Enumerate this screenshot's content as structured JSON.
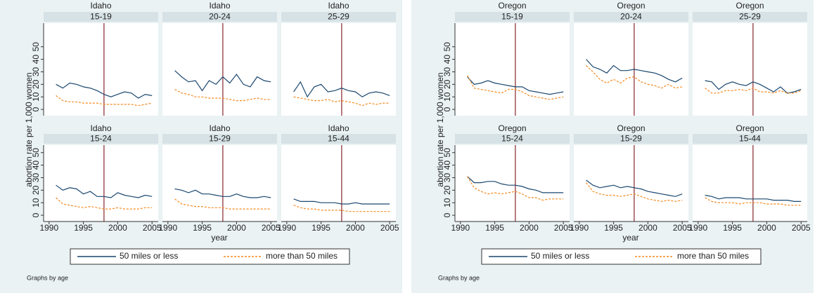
{
  "chart_data": [
    {
      "type": "line",
      "ylabel": "abortion rate per 1,000 women",
      "xlabel": "year",
      "note": "Graphs by age",
      "x": [
        1991,
        1992,
        1993,
        1994,
        1995,
        1996,
        1997,
        1998,
        1999,
        2000,
        2001,
        2002,
        2003,
        2004,
        2005
      ],
      "xlim": [
        1989.2,
        2005.9
      ],
      "ylim": [
        -5,
        56
      ],
      "xticks": [
        1990,
        1995,
        2000,
        2005
      ],
      "yticks": [
        0,
        10,
        20,
        30,
        40,
        50
      ],
      "reference_line": 1998,
      "reference_color": "#90353b",
      "series": [
        {
          "name": "50 miles or less",
          "color": "#1a476f",
          "dash": false
        },
        {
          "name": "more than 50 miles",
          "color": "#f5891f",
          "dash": true
        }
      ],
      "panels": [
        {
          "title": "Idaho",
          "subtitle": "15-19",
          "series": [
            {
              "values": [
                20,
                17,
                21,
                20,
                18,
                17,
                15,
                12,
                10,
                12,
                14,
                13,
                9,
                12,
                11
              ]
            },
            {
              "values": [
                11,
                7,
                6,
                6,
                5,
                5,
                5,
                4,
                4,
                4,
                4,
                4,
                3,
                4,
                5
              ]
            }
          ]
        },
        {
          "title": "Idaho",
          "subtitle": "20-24",
          "series": [
            {
              "values": [
                31,
                26,
                22,
                23,
                15,
                23,
                20,
                26,
                21,
                28,
                20,
                18,
                26,
                23,
                22
              ]
            },
            {
              "values": [
                16,
                13,
                12,
                10,
                10,
                9,
                9,
                9,
                8,
                7,
                7,
                8,
                9,
                8,
                8
              ]
            }
          ]
        },
        {
          "title": "Idaho",
          "subtitle": "25-29",
          "series": [
            {
              "values": [
                14,
                22,
                10,
                18,
                20,
                14,
                15,
                17,
                15,
                14,
                10,
                13,
                14,
                13,
                11
              ]
            },
            {
              "values": [
                10,
                9,
                8,
                7,
                7,
                8,
                6,
                7,
                6,
                5,
                3,
                5,
                4,
                5,
                5
              ]
            }
          ]
        },
        {
          "title": "Idaho",
          "subtitle": "15-24",
          "series": [
            {
              "values": [
                24,
                20,
                22,
                21,
                17,
                19,
                15,
                15,
                14,
                18,
                16,
                15,
                14,
                16,
                15
              ]
            },
            {
              "values": [
                14,
                9,
                8,
                7,
                6,
                7,
                6,
                5,
                5,
                6,
                5,
                5,
                5,
                6,
                6
              ]
            }
          ]
        },
        {
          "title": "Idaho",
          "subtitle": "15-29",
          "series": [
            {
              "values": [
                21,
                20,
                18,
                20,
                17,
                17,
                16,
                15,
                15,
                17,
                15,
                14,
                14,
                15,
                14
              ]
            },
            {
              "values": [
                13,
                9,
                8,
                7,
                7,
                6,
                6,
                6,
                5,
                5,
                5,
                5,
                5,
                5,
                5
              ]
            }
          ]
        },
        {
          "title": "Idaho",
          "subtitle": "15-44",
          "series": [
            {
              "values": [
                13,
                11,
                11,
                11,
                10,
                10,
                10,
                9,
                9,
                10,
                9,
                9,
                9,
                9,
                9
              ]
            },
            {
              "values": [
                8,
                6,
                5,
                5,
                4,
                4,
                4,
                4,
                3,
                3,
                3,
                3,
                3,
                3,
                3
              ]
            }
          ]
        }
      ]
    },
    {
      "type": "line",
      "ylabel": "abortion rate per 1,000 women",
      "xlabel": "year",
      "note": "Graphs by age",
      "x": [
        1991,
        1992,
        1993,
        1994,
        1995,
        1996,
        1997,
        1998,
        1999,
        2000,
        2001,
        2002,
        2003,
        2004,
        2005
      ],
      "xlim": [
        1989.2,
        2005.9
      ],
      "ylim": [
        -5,
        56
      ],
      "xticks": [
        1990,
        1995,
        2000,
        2005
      ],
      "yticks": [
        0,
        10,
        20,
        30,
        40,
        50
      ],
      "reference_line": 1998,
      "reference_color": "#90353b",
      "series": [
        {
          "name": "50 miles or less",
          "color": "#1a476f",
          "dash": false
        },
        {
          "name": "more than 50 miles",
          "color": "#f5891f",
          "dash": true
        }
      ],
      "panels": [
        {
          "title": "Oregon",
          "subtitle": "15-19",
          "series": [
            {
              "values": [
                26,
                20,
                21,
                23,
                21,
                20,
                19,
                18,
                18,
                15,
                14,
                13,
                12,
                13,
                14
              ]
            },
            {
              "values": [
                27,
                17,
                16,
                15,
                14,
                13,
                16,
                16,
                14,
                11,
                10,
                9,
                8,
                9,
                10
              ]
            }
          ]
        },
        {
          "title": "Oregon",
          "subtitle": "20-24",
          "series": [
            {
              "values": [
                40,
                34,
                32,
                29,
                35,
                31,
                31,
                32,
                31,
                30,
                29,
                27,
                24,
                22,
                25
              ]
            },
            {
              "values": [
                35,
                30,
                24,
                21,
                24,
                21,
                25,
                26,
                22,
                20,
                19,
                17,
                20,
                17,
                18
              ]
            }
          ]
        },
        {
          "title": "Oregon",
          "subtitle": "25-29",
          "series": [
            {
              "values": [
                23,
                22,
                16,
                20,
                22,
                20,
                19,
                22,
                20,
                17,
                14,
                18,
                13,
                14,
                16
              ]
            },
            {
              "values": [
                17,
                13,
                13,
                15,
                15,
                16,
                15,
                17,
                14,
                14,
                13,
                15,
                13,
                13,
                15
              ]
            }
          ]
        },
        {
          "title": "Oregon",
          "subtitle": "15-24",
          "series": [
            {
              "values": [
                31,
                26,
                26,
                27,
                27,
                25,
                24,
                24,
                23,
                21,
                20,
                18,
                18,
                18,
                18
              ]
            },
            {
              "values": [
                31,
                22,
                19,
                17,
                18,
                17,
                18,
                19,
                17,
                14,
                14,
                12,
                13,
                13,
                13
              ]
            }
          ]
        },
        {
          "title": "Oregon",
          "subtitle": "15-29",
          "series": [
            {
              "values": [
                28,
                24,
                22,
                23,
                24,
                22,
                23,
                22,
                21,
                19,
                18,
                17,
                16,
                15,
                17
              ]
            },
            {
              "values": [
                26,
                19,
                17,
                16,
                16,
                15,
                16,
                17,
                15,
                13,
                12,
                11,
                12,
                11,
                12
              ]
            }
          ]
        },
        {
          "title": "Oregon",
          "subtitle": "15-44",
          "series": [
            {
              "values": [
                16,
                15,
                13,
                14,
                14,
                14,
                13,
                13,
                13,
                13,
                12,
                12,
                12,
                11,
                11
              ]
            },
            {
              "values": [
                14,
                11,
                10,
                10,
                10,
                9,
                10,
                10,
                10,
                9,
                9,
                9,
                8,
                8,
                8
              ]
            }
          ]
        }
      ]
    }
  ]
}
